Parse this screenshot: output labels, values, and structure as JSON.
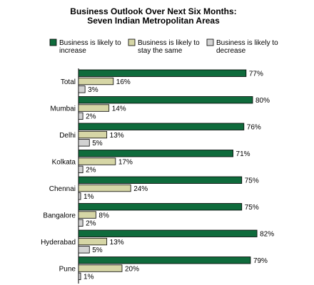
{
  "chart_data": {
    "type": "bar",
    "orientation": "horizontal",
    "title_lines": [
      "Business Outlook Over Next Six Months:",
      "Seven Indian Metropolitan Areas"
    ],
    "xlabel": "",
    "ylabel": "",
    "xlim": [
      0,
      100
    ],
    "grid": false,
    "legend_position": "top",
    "value_suffix": "%",
    "categories": [
      "Total",
      "Mumbai",
      "Delhi",
      "Kolkata",
      "Chennai",
      "Bangalore",
      "Hyderabad",
      "Pune"
    ],
    "series": [
      {
        "legend_lines": [
          "Business is likely to",
          "increase"
        ],
        "color": "#0f6b3c",
        "values": [
          77,
          80,
          76,
          71,
          75,
          75,
          82,
          79
        ]
      },
      {
        "legend_lines": [
          "Business is likely to",
          "stay the same"
        ],
        "color": "#d6d6a6",
        "values": [
          16,
          14,
          13,
          17,
          24,
          8,
          13,
          20
        ]
      },
      {
        "legend_lines": [
          "Business is likely to",
          "decrease"
        ],
        "color": "#d2d2d2",
        "values": [
          3,
          2,
          5,
          2,
          1,
          2,
          5,
          1
        ]
      }
    ]
  }
}
